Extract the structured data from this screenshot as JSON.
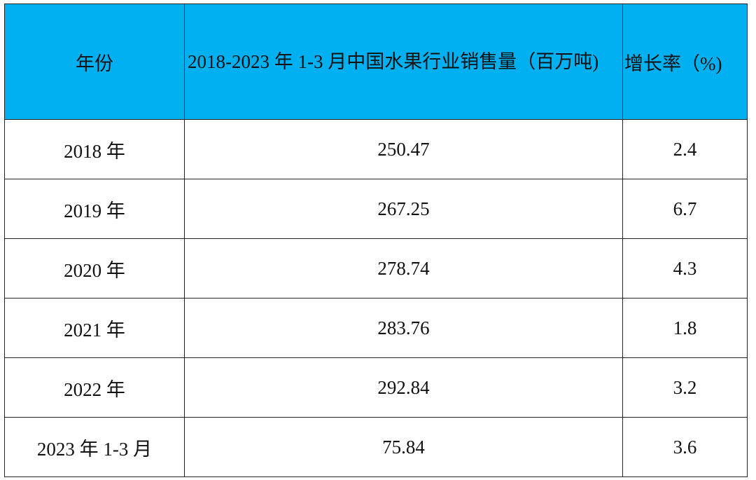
{
  "table": {
    "header": [
      "年份",
      "2018-2023 年 1-3 月中国水果行业销售量（百万吨)",
      "增长率（%)"
    ],
    "rows": [
      [
        "2018 年",
        250.47,
        2.4
      ],
      [
        "2019 年",
        267.25,
        6.7
      ],
      [
        "2020 年",
        278.74,
        4.3
      ],
      [
        "2021 年",
        283.76,
        1.8
      ],
      [
        "2022 年",
        292.84,
        3.2
      ],
      [
        "2023 年 1-3 月",
        75.84,
        3.6
      ]
    ]
  }
}
